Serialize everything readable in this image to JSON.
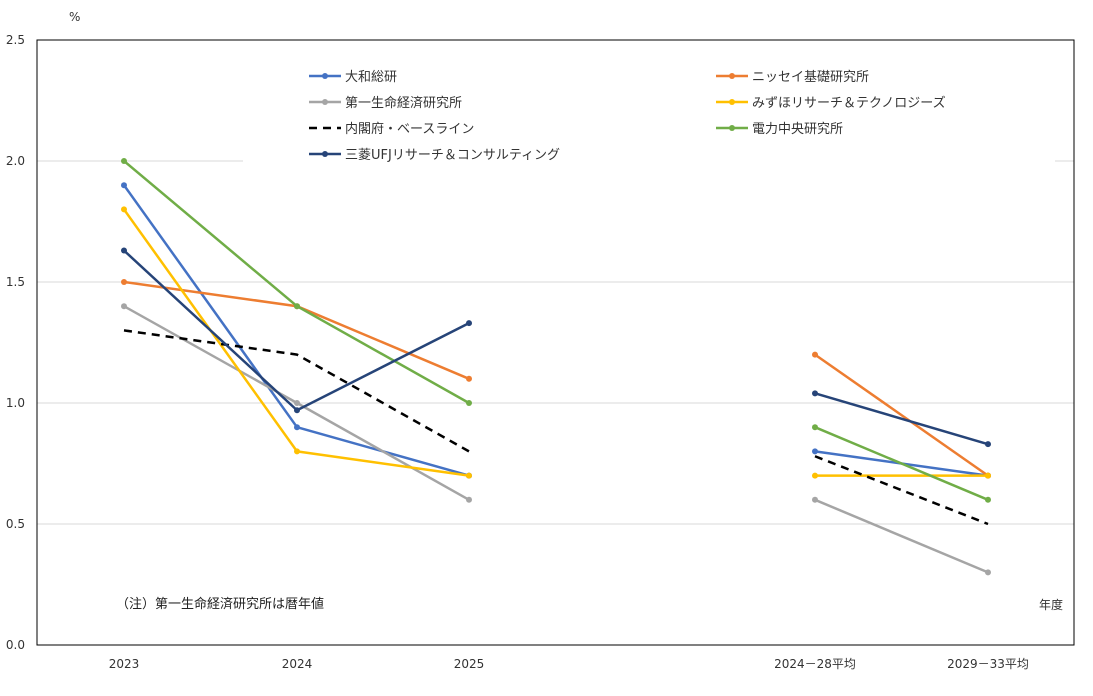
{
  "chart_data": {
    "type": "line",
    "ylabel": "%",
    "xlabel": "年度",
    "ylim": [
      0,
      2.5
    ],
    "yticks": [
      "0.0",
      "0.5",
      "1.0",
      "1.5",
      "2.0",
      "2.5"
    ],
    "categories": [
      "2023",
      "2024",
      "2025",
      "2024－28平均",
      "2029－33平均"
    ],
    "grid": true,
    "legend_position": "top",
    "note": "（注）第一生命経済研究所は暦年値",
    "series": [
      {
        "name": "大和総研",
        "color": "#4472c4",
        "dash": false,
        "values": [
          1.9,
          0.9,
          0.7,
          0.8,
          0.7
        ]
      },
      {
        "name": "ニッセイ基礎研究所",
        "color": "#ed7d31",
        "dash": false,
        "values": [
          1.5,
          1.4,
          1.1,
          1.2,
          0.7
        ]
      },
      {
        "name": "第一生命経済研究所",
        "color": "#a5a5a5",
        "dash": false,
        "values": [
          1.4,
          1.0,
          0.6,
          0.6,
          0.3
        ]
      },
      {
        "name": "みずほリサーチ＆テクノロジーズ",
        "color": "#ffc000",
        "dash": false,
        "values": [
          1.8,
          0.8,
          0.7,
          0.7,
          0.7
        ]
      },
      {
        "name": "内閣府・ベースライン",
        "color": "#000000",
        "dash": true,
        "values": [
          1.3,
          1.2,
          0.8,
          0.78,
          0.5
        ]
      },
      {
        "name": "電力中央研究所",
        "color": "#70ad47",
        "dash": false,
        "values": [
          2.0,
          1.4,
          1.0,
          0.9,
          0.6
        ]
      },
      {
        "name": "三菱UFJリサーチ＆コンサルティング",
        "color": "#264478",
        "dash": false,
        "values": [
          1.63,
          0.97,
          1.33,
          1.04,
          0.83
        ]
      }
    ]
  }
}
